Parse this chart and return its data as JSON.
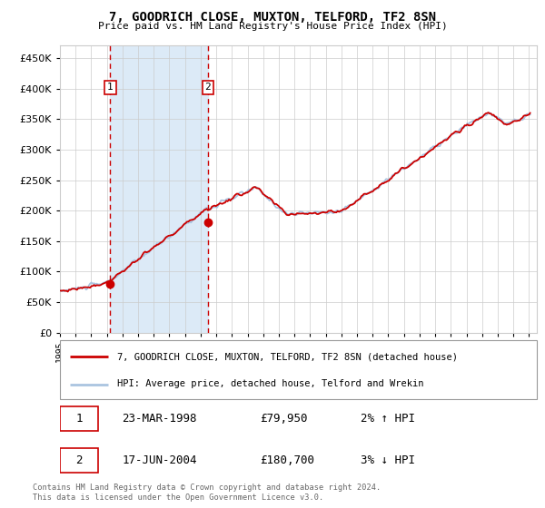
{
  "title": "7, GOODRICH CLOSE, MUXTON, TELFORD, TF2 8SN",
  "subtitle": "Price paid vs. HM Land Registry's House Price Index (HPI)",
  "legend_line1": "7, GOODRICH CLOSE, MUXTON, TELFORD, TF2 8SN (detached house)",
  "legend_line2": "HPI: Average price, detached house, Telford and Wrekin",
  "table_rows": [
    [
      "1",
      "23-MAR-1998",
      "£79,950",
      "2% ↑ HPI"
    ],
    [
      "2",
      "17-JUN-2004",
      "£180,700",
      "3% ↓ HPI"
    ]
  ],
  "footnote": "Contains HM Land Registry data © Crown copyright and database right 2024.\nThis data is licensed under the Open Government Licence v3.0.",
  "hpi_color": "#aac4e0",
  "price_color": "#cc0000",
  "point_color": "#cc0000",
  "shade_color": "#dceaf7",
  "dashed_color": "#cc0000",
  "background_color": "#ffffff",
  "grid_color": "#cccccc",
  "ylim": [
    0,
    470000
  ],
  "yticks": [
    0,
    50000,
    100000,
    150000,
    200000,
    250000,
    300000,
    350000,
    400000,
    450000
  ],
  "purchase1_year": 1998.22,
  "purchase1_price": 79950,
  "purchase2_year": 2004.46,
  "purchase2_price": 180700,
  "shade_start": 1998.22,
  "shade_end": 2004.46,
  "xlim_start": 1995.0,
  "xlim_end": 2025.5
}
